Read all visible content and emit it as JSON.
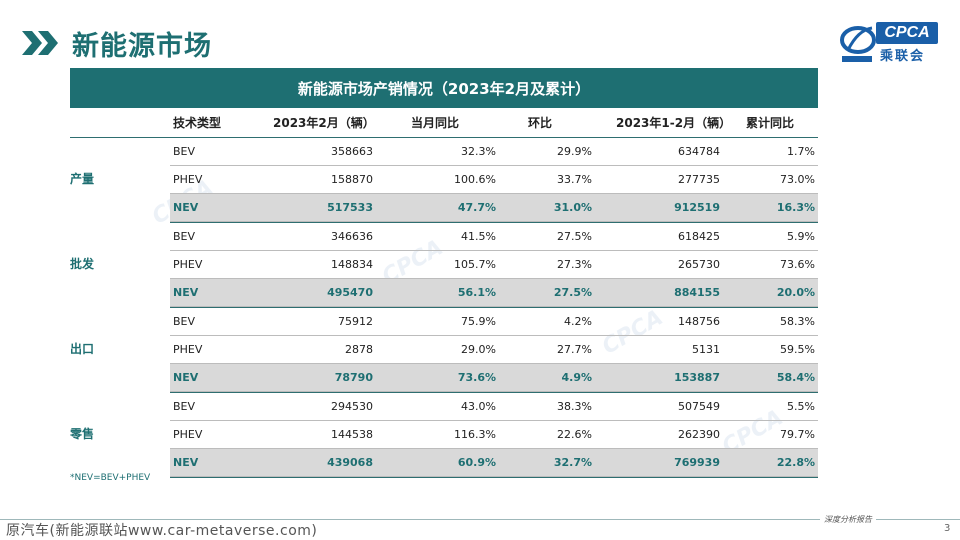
{
  "page": {
    "title": "新能源市场",
    "page_number": "3"
  },
  "logo": {
    "brand": "CPCA",
    "cn": "乘联会"
  },
  "table": {
    "header": "新能源市场产销情况（2023年2月及累计）",
    "columns": [
      "技术类型",
      "2023年2月（辆）",
      "当月同比",
      "环比",
      "2023年1-2月（辆）",
      "累计同比"
    ],
    "groups": [
      {
        "label": "产量",
        "rows": [
          {
            "type": "BEV",
            "month": "358663",
            "yoy": "32.3%",
            "mom": "29.9%",
            "cum": "634784",
            "cum_yoy": "1.7%"
          },
          {
            "type": "PHEV",
            "month": "158870",
            "yoy": "100.6%",
            "mom": "33.7%",
            "cum": "277735",
            "cum_yoy": "73.0%"
          },
          {
            "type": "NEV",
            "month": "517533",
            "yoy": "47.7%",
            "mom": "31.0%",
            "cum": "912519",
            "cum_yoy": "16.3%"
          }
        ]
      },
      {
        "label": "批发",
        "rows": [
          {
            "type": "BEV",
            "month": "346636",
            "yoy": "41.5%",
            "mom": "27.5%",
            "cum": "618425",
            "cum_yoy": "5.9%"
          },
          {
            "type": "PHEV",
            "month": "148834",
            "yoy": "105.7%",
            "mom": "27.3%",
            "cum": "265730",
            "cum_yoy": "73.6%"
          },
          {
            "type": "NEV",
            "month": "495470",
            "yoy": "56.1%",
            "mom": "27.5%",
            "cum": "884155",
            "cum_yoy": "20.0%"
          }
        ]
      },
      {
        "label": "出口",
        "rows": [
          {
            "type": "BEV",
            "month": "75912",
            "yoy": "75.9%",
            "mom": "4.2%",
            "cum": "148756",
            "cum_yoy": "58.3%"
          },
          {
            "type": "PHEV",
            "month": "2878",
            "yoy": "29.0%",
            "mom": "27.7%",
            "cum": "5131",
            "cum_yoy": "59.5%"
          },
          {
            "type": "NEV",
            "month": "78790",
            "yoy": "73.6%",
            "mom": "4.9%",
            "cum": "153887",
            "cum_yoy": "58.4%"
          }
        ]
      },
      {
        "label": "零售",
        "rows": [
          {
            "type": "BEV",
            "month": "294530",
            "yoy": "43.0%",
            "mom": "38.3%",
            "cum": "507549",
            "cum_yoy": "5.5%"
          },
          {
            "type": "PHEV",
            "month": "144538",
            "yoy": "116.3%",
            "mom": "22.6%",
            "cum": "262390",
            "cum_yoy": "79.7%"
          },
          {
            "type": "NEV",
            "month": "439068",
            "yoy": "60.9%",
            "mom": "32.7%",
            "cum": "769939",
            "cum_yoy": "22.8%"
          }
        ]
      }
    ]
  },
  "footnote": "*NEV=BEV+PHEV",
  "watermark": "原汽车(新能源联站www.car-metaverse.com)",
  "report_tag": "深度分析报告",
  "colors": {
    "accent": "#1e6f72",
    "brand": "#1a5fa8",
    "nev_row_bg": "#d9d9d9"
  }
}
